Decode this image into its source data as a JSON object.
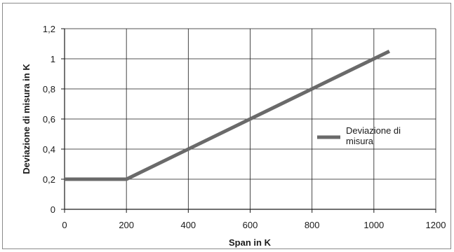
{
  "chart_data": {
    "type": "line",
    "title": "",
    "xlabel": "Span in K",
    "ylabel": "Deviazione di misura in K",
    "xlim": [
      0,
      1200
    ],
    "ylim": [
      0,
      1.2
    ],
    "xticks": [
      0,
      200,
      400,
      600,
      800,
      1000,
      1200
    ],
    "yticks": [
      0,
      0.2,
      0.4,
      0.6,
      0.8,
      1,
      1.2
    ],
    "xtick_labels": [
      "0",
      "200",
      "400",
      "600",
      "800",
      "1000",
      "1200"
    ],
    "ytick_labels": [
      "0",
      "0,2",
      "0,4",
      "0,6",
      "0,8",
      "1",
      "1,2"
    ],
    "grid": true,
    "legend_position": "right",
    "series": [
      {
        "name": "Deviazione di misura",
        "legend_lines": [
          "Deviazione di",
          "misura"
        ],
        "color": "#6a6a6a",
        "x": [
          0,
          200,
          1050
        ],
        "y": [
          0.2,
          0.2,
          1.05
        ]
      }
    ]
  }
}
